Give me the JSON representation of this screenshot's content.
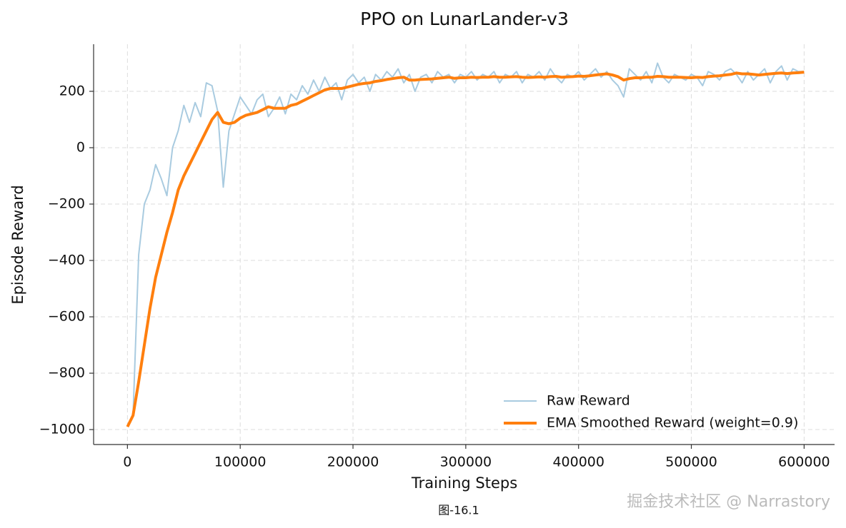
{
  "chart_data": {
    "type": "line",
    "title": "PPO on LunarLander-v3",
    "xlabel": "Training Steps",
    "ylabel": "Episode Reward",
    "x": [
      0,
      5000,
      10000,
      15000,
      20000,
      25000,
      30000,
      35000,
      40000,
      45000,
      50000,
      55000,
      60000,
      65000,
      70000,
      75000,
      80000,
      85000,
      90000,
      95000,
      100000,
      105000,
      110000,
      115000,
      120000,
      125000,
      130000,
      135000,
      140000,
      145000,
      150000,
      155000,
      160000,
      165000,
      170000,
      175000,
      180000,
      185000,
      190000,
      195000,
      200000,
      205000,
      210000,
      215000,
      220000,
      225000,
      230000,
      235000,
      240000,
      245000,
      250000,
      255000,
      260000,
      265000,
      270000,
      275000,
      280000,
      285000,
      290000,
      295000,
      300000,
      305000,
      310000,
      315000,
      320000,
      325000,
      330000,
      335000,
      340000,
      345000,
      350000,
      355000,
      360000,
      365000,
      370000,
      375000,
      380000,
      385000,
      390000,
      395000,
      400000,
      405000,
      410000,
      415000,
      420000,
      425000,
      430000,
      435000,
      440000,
      445000,
      450000,
      455000,
      460000,
      465000,
      470000,
      475000,
      480000,
      485000,
      490000,
      495000,
      500000,
      505000,
      510000,
      515000,
      520000,
      525000,
      530000,
      535000,
      540000,
      545000,
      550000,
      555000,
      560000,
      565000,
      570000,
      575000,
      580000,
      585000,
      590000,
      595000,
      600000
    ],
    "series": [
      {
        "name": "Raw Reward",
        "color": "#a9cbe0",
        "width": 2,
        "values": [
          -990,
          -950,
          -380,
          -200,
          -150,
          -60,
          -110,
          -170,
          0,
          60,
          150,
          90,
          160,
          110,
          230,
          220,
          130,
          -140,
          60,
          120,
          180,
          150,
          120,
          170,
          190,
          110,
          140,
          180,
          120,
          190,
          170,
          220,
          190,
          240,
          200,
          250,
          210,
          230,
          170,
          240,
          260,
          230,
          250,
          200,
          260,
          240,
          270,
          250,
          280,
          230,
          260,
          200,
          250,
          260,
          230,
          270,
          250,
          260,
          230,
          260,
          250,
          270,
          240,
          260,
          250,
          270,
          230,
          260,
          250,
          270,
          230,
          260,
          250,
          270,
          240,
          280,
          250,
          230,
          260,
          250,
          270,
          240,
          260,
          280,
          250,
          270,
          240,
          220,
          180,
          280,
          260,
          240,
          270,
          230,
          300,
          250,
          230,
          260,
          250,
          240,
          260,
          250,
          220,
          270,
          260,
          240,
          270,
          280,
          260,
          230,
          270,
          240,
          260,
          280,
          230,
          270,
          290,
          240,
          280,
          270,
          270
        ]
      },
      {
        "name": "EMA Smoothed Reward (weight=0.9)",
        "color": "#ff7f0e",
        "width": 4,
        "values": [
          -990,
          -950,
          -830,
          -700,
          -570,
          -460,
          -380,
          -300,
          -230,
          -150,
          -100,
          -60,
          -20,
          20,
          60,
          100,
          125,
          90,
          85,
          90,
          105,
          115,
          120,
          125,
          135,
          145,
          140,
          140,
          140,
          150,
          155,
          165,
          175,
          185,
          195,
          205,
          210,
          210,
          210,
          215,
          220,
          225,
          228,
          230,
          235,
          238,
          242,
          245,
          248,
          250,
          240,
          240,
          242,
          243,
          244,
          246,
          248,
          250,
          246,
          248,
          248,
          250,
          249,
          250,
          250,
          252,
          250,
          250,
          251,
          252,
          250,
          249,
          250,
          251,
          250,
          252,
          253,
          250,
          251,
          252,
          254,
          253,
          255,
          258,
          260,
          262,
          258,
          252,
          240,
          245,
          248,
          248,
          250,
          250,
          253,
          252,
          250,
          250,
          250,
          249,
          248,
          250,
          249,
          252,
          254,
          255,
          258,
          260,
          265,
          262,
          262,
          260,
          258,
          260,
          262,
          264,
          265,
          263,
          265,
          266,
          268
        ]
      }
    ],
    "xlim": [
      -30000,
      627000
    ],
    "ylim": [
      -1053,
      367
    ],
    "xticks": [
      0,
      100000,
      200000,
      300000,
      400000,
      500000,
      600000
    ],
    "yticks": [
      {
        "value": -1000,
        "label": "−1000"
      },
      {
        "value": -800,
        "label": "−800"
      },
      {
        "value": -600,
        "label": "−600"
      },
      {
        "value": -400,
        "label": "−400"
      },
      {
        "value": -200,
        "label": "−200"
      },
      0,
      200
    ],
    "grid": true,
    "legend": "lower right"
  },
  "caption": "图-16.1",
  "watermark": "掘金技术社区 @ Narrastory"
}
